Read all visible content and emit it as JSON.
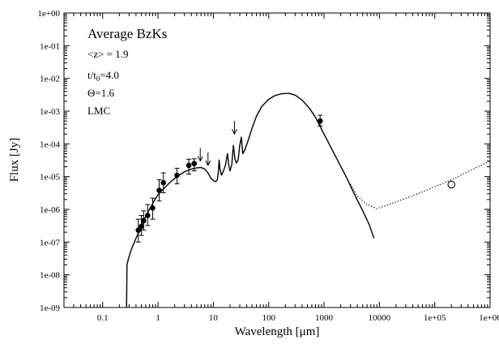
{
  "chart_data": {
    "type": "line",
    "title": "",
    "xlabel": "Wavelength [μm]",
    "ylabel": "Flux [Jy]",
    "x_scale": "log",
    "y_scale": "log",
    "xlim": [
      0.02,
      1000000
    ],
    "ylim": [
      1e-09,
      1
    ],
    "grid": false,
    "x_ticks": [
      {
        "value": 0.1,
        "label": "0.1"
      },
      {
        "value": 1,
        "label": "1"
      },
      {
        "value": 10,
        "label": "10"
      },
      {
        "value": 100,
        "label": "100"
      },
      {
        "value": 1000,
        "label": "1000"
      },
      {
        "value": 10000,
        "label": "10000"
      },
      {
        "value": 100000,
        "label": "1e+05"
      },
      {
        "value": 1000000,
        "label": "1e+06"
      }
    ],
    "y_ticks": [
      {
        "value": 1e-09,
        "label": "1e-09"
      },
      {
        "value": 1e-08,
        "label": "1e-08"
      },
      {
        "value": 1e-07,
        "label": "1e-07"
      },
      {
        "value": 1e-06,
        "label": "1e-06"
      },
      {
        "value": 1e-05,
        "label": "1e-05"
      },
      {
        "value": 0.0001,
        "label": "1e-04"
      },
      {
        "value": 0.001,
        "label": "1e-03"
      },
      {
        "value": 0.01,
        "label": "1e-02"
      },
      {
        "value": 0.1,
        "label": "1e-01"
      },
      {
        "value": 1,
        "label": "1e+00"
      }
    ],
    "annotations": {
      "name": "Average BzKs",
      "redshift": "<z> = 1.9",
      "age_prefix": "t/t",
      "age_sub": "0",
      "age_value": "=4.0",
      "theta": "Θ=1.6",
      "extinction": "LMC"
    },
    "series": [
      {
        "style": "solid",
        "points": [
          [
            0.27,
            1e-09
          ],
          [
            0.275,
            2e-08
          ],
          [
            0.29,
            3e-08
          ],
          [
            0.33,
            6e-08
          ],
          [
            0.4,
            1.3e-07
          ],
          [
            0.5,
            3e-07
          ],
          [
            0.6,
            6e-07
          ],
          [
            0.7,
            1e-06
          ],
          [
            0.85,
            1.8e-06
          ],
          [
            1.0,
            2.8e-06
          ],
          [
            1.3,
            4.5e-06
          ],
          [
            1.7,
            7e-06
          ],
          [
            2.2,
            1e-05
          ],
          [
            3.0,
            1.4e-05
          ],
          [
            4.0,
            1.7e-05
          ],
          [
            5.0,
            1.85e-05
          ],
          [
            6.0,
            1.9e-05
          ],
          [
            7.0,
            1.7e-05
          ],
          [
            8.0,
            1.3e-05
          ],
          [
            9.0,
            9e-06
          ],
          [
            10.0,
            7.5e-06
          ],
          [
            11.0,
            7e-06
          ],
          [
            11.8,
            8e-06
          ],
          [
            12.3,
            1.4e-05
          ],
          [
            12.7,
            3.2e-05
          ],
          [
            13.2,
            1.7e-05
          ],
          [
            14.0,
            1.1e-05
          ],
          [
            15.0,
            1.4e-05
          ],
          [
            16.5,
            2.2e-05
          ],
          [
            18.0,
            5e-05
          ],
          [
            19.0,
            2.2e-05
          ],
          [
            20.0,
            1.5e-05
          ],
          [
            21.5,
            2.3e-05
          ],
          [
            23.0,
            9e-05
          ],
          [
            24.5,
            3.5e-05
          ],
          [
            26.0,
            2.6e-05
          ],
          [
            28.0,
            3.2e-05
          ],
          [
            30.0,
            9e-05
          ],
          [
            32.0,
            0.00016
          ],
          [
            34.0,
            5e-05
          ],
          [
            37.0,
            6.5e-05
          ],
          [
            42.0,
            0.00012
          ],
          [
            50.0,
            0.0003
          ],
          [
            60.0,
            0.0007
          ],
          [
            75.0,
            0.0014
          ],
          [
            100.0,
            0.0023
          ],
          [
            130.0,
            0.003
          ],
          [
            170.0,
            0.0034
          ],
          [
            230.0,
            0.0035
          ],
          [
            300.0,
            0.0031
          ],
          [
            400.0,
            0.0022
          ],
          [
            550.0,
            0.0012
          ],
          [
            700.0,
            0.00065
          ],
          [
            900.0,
            0.00028
          ],
          [
            1200.0,
            0.00011
          ],
          [
            1700.0,
            3.5e-05
          ],
          [
            2500.0,
            1e-05
          ],
          [
            3500.0,
            3e-06
          ],
          [
            5000.0,
            9e-07
          ],
          [
            6500.0,
            3.5e-07
          ],
          [
            8000.0,
            1.3e-07
          ]
        ]
      },
      {
        "style": "dotted",
        "points": [
          [
            3000.0,
            6e-06
          ],
          [
            4000.0,
            2.5e-06
          ],
          [
            6000.0,
            1.4e-06
          ],
          [
            9000.0,
            1.05e-06
          ],
          [
            15000.0,
            1.4e-06
          ],
          [
            50000.0,
            3e-06
          ],
          [
            200000.0,
            8e-06
          ],
          [
            1000000.0,
            3e-05
          ]
        ]
      }
    ],
    "data_points": [
      {
        "x": 0.44,
        "y": 2.3e-07,
        "ylo": 1e-07,
        "yhi": 5e-07
      },
      {
        "x": 0.5,
        "y": 3e-07,
        "ylo": 1.6e-07,
        "yhi": 6.5e-07
      },
      {
        "x": 0.55,
        "y": 4.5e-07,
        "ylo": 2.3e-07,
        "yhi": 9e-07
      },
      {
        "x": 0.65,
        "y": 6.5e-07,
        "ylo": 3.2e-07,
        "yhi": 1.4e-06
      },
      {
        "x": 0.8,
        "y": 1.1e-06,
        "ylo": 5e-07,
        "yhi": 2.2e-06
      },
      {
        "x": 1.05,
        "y": 3.8e-06,
        "ylo": 1.8e-06,
        "yhi": 8e-06
      },
      {
        "x": 1.25,
        "y": 6.5e-06,
        "ylo": 3.2e-06,
        "yhi": 1.3e-05
      },
      {
        "x": 2.2,
        "y": 1.1e-05,
        "ylo": 6e-06,
        "yhi": 1.8e-05
      },
      {
        "x": 3.6,
        "y": 2.2e-05,
        "ylo": 1.2e-05,
        "yhi": 3.4e-05
      },
      {
        "x": 4.5,
        "y": 2.5e-05,
        "ylo": 1.5e-05,
        "yhi": 3.5e-05
      },
      {
        "x": 850.0,
        "y": 0.0005,
        "ylo": 0.00035,
        "yhi": 0.00075
      }
    ],
    "upper_limits": [
      {
        "x": 5.8,
        "y": 3e-05
      },
      {
        "x": 8.0,
        "y": 2.2e-05
      },
      {
        "x": 24.0,
        "y": 0.0002
      }
    ],
    "open_points": [
      {
        "x": 200000.0,
        "y": 5.7e-06
      }
    ]
  }
}
